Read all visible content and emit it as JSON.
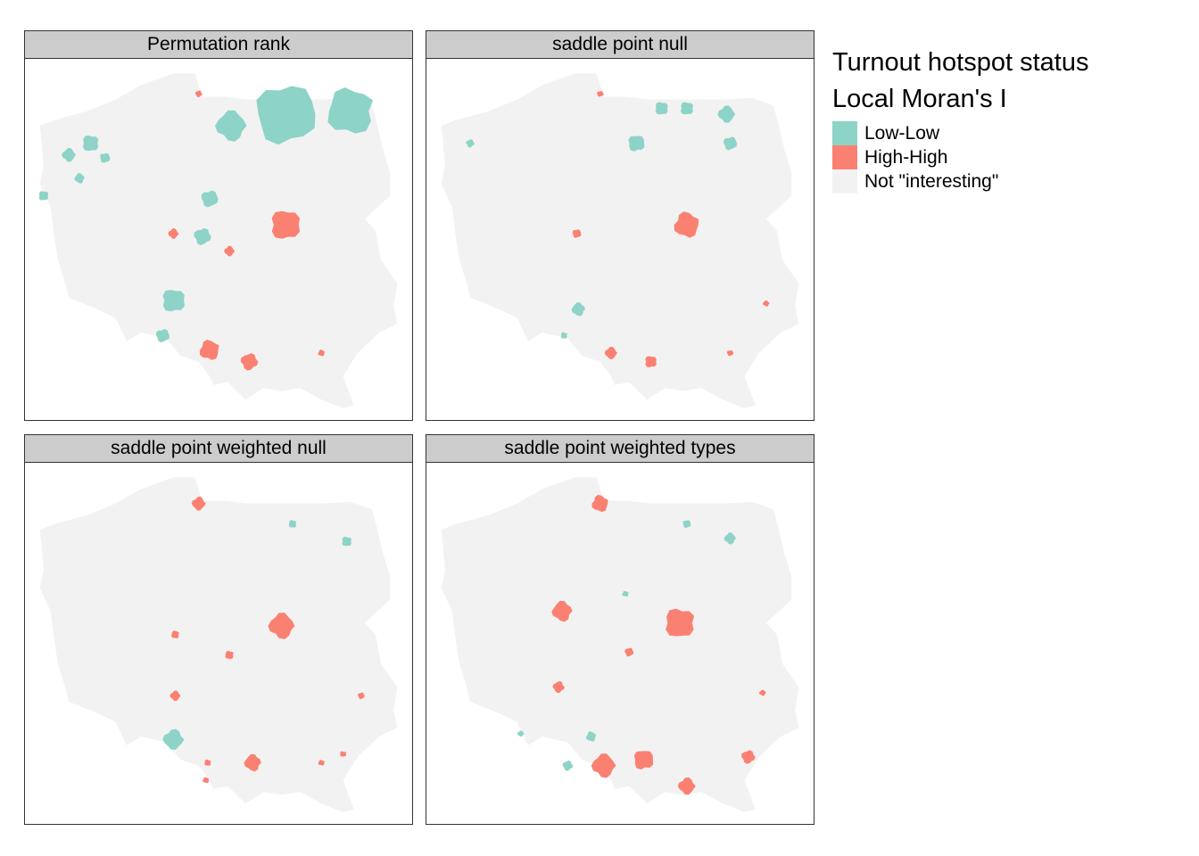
{
  "legend": {
    "title_line1": "Turnout hotspot status",
    "title_line2": "Local Moran's I",
    "items": [
      {
        "label": "Low-Low",
        "color": "#8ed3c7"
      },
      {
        "label": "High-High",
        "color": "#fa8172"
      },
      {
        "label": "Not \"interesting\"",
        "color": "#f2f2f2"
      }
    ]
  },
  "colors": {
    "land": "#f2f2f2",
    "low_low": "#8ed3c7",
    "high_high": "#fa8172"
  },
  "panels": [
    {
      "title": "Permutation rank",
      "clusters": [
        {
          "type": "LL",
          "lon": 21.0,
          "lat": 54.1,
          "r": 0.9
        },
        {
          "type": "LL",
          "lon": 22.8,
          "lat": 54.15,
          "r": 0.7
        },
        {
          "type": "LL",
          "lon": 19.5,
          "lat": 53.9,
          "r": 0.45
        },
        {
          "type": "LL",
          "lon": 15.6,
          "lat": 53.6,
          "r": 0.25
        },
        {
          "type": "LL",
          "lon": 15.0,
          "lat": 53.4,
          "r": 0.2
        },
        {
          "type": "LL",
          "lon": 16.0,
          "lat": 53.35,
          "r": 0.15
        },
        {
          "type": "LL",
          "lon": 14.3,
          "lat": 52.7,
          "r": 0.15
        },
        {
          "type": "LL",
          "lon": 15.3,
          "lat": 53.0,
          "r": 0.15
        },
        {
          "type": "LL",
          "lon": 18.9,
          "lat": 52.65,
          "r": 0.25
        },
        {
          "type": "LL",
          "lon": 18.7,
          "lat": 52.0,
          "r": 0.25
        },
        {
          "type": "LL",
          "lon": 17.9,
          "lat": 50.9,
          "r": 0.35
        },
        {
          "type": "LL",
          "lon": 17.6,
          "lat": 50.3,
          "r": 0.2
        },
        {
          "type": "HH",
          "lon": 21.0,
          "lat": 52.2,
          "r": 0.45
        },
        {
          "type": "HH",
          "lon": 17.9,
          "lat": 52.05,
          "r": 0.15
        },
        {
          "type": "HH",
          "lon": 19.45,
          "lat": 51.75,
          "r": 0.15
        },
        {
          "type": "HH",
          "lon": 18.6,
          "lat": 54.45,
          "r": 0.1
        },
        {
          "type": "HH",
          "lon": 18.9,
          "lat": 50.05,
          "r": 0.3
        },
        {
          "type": "HH",
          "lon": 20.0,
          "lat": 49.85,
          "r": 0.25
        },
        {
          "type": "HH",
          "lon": 22.0,
          "lat": 50.0,
          "r": 0.1
        }
      ]
    },
    {
      "title": "saddle point null",
      "clusters": [
        {
          "type": "LL",
          "lon": 20.3,
          "lat": 54.2,
          "r": 0.2
        },
        {
          "type": "LL",
          "lon": 21.0,
          "lat": 54.2,
          "r": 0.2
        },
        {
          "type": "LL",
          "lon": 22.1,
          "lat": 54.1,
          "r": 0.25
        },
        {
          "type": "LL",
          "lon": 22.2,
          "lat": 53.6,
          "r": 0.2
        },
        {
          "type": "LL",
          "lon": 19.6,
          "lat": 53.6,
          "r": 0.25
        },
        {
          "type": "LL",
          "lon": 15.0,
          "lat": 53.6,
          "r": 0.12
        },
        {
          "type": "LL",
          "lon": 18.0,
          "lat": 50.75,
          "r": 0.2
        },
        {
          "type": "LL",
          "lon": 17.6,
          "lat": 50.3,
          "r": 0.1
        },
        {
          "type": "HH",
          "lon": 21.0,
          "lat": 52.2,
          "r": 0.38
        },
        {
          "type": "HH",
          "lon": 17.95,
          "lat": 52.05,
          "r": 0.13
        },
        {
          "type": "HH",
          "lon": 18.6,
          "lat": 54.45,
          "r": 0.08
        },
        {
          "type": "HH",
          "lon": 23.2,
          "lat": 50.85,
          "r": 0.08
        },
        {
          "type": "HH",
          "lon": 18.9,
          "lat": 50.0,
          "r": 0.18
        },
        {
          "type": "HH",
          "lon": 20.0,
          "lat": 49.85,
          "r": 0.18
        },
        {
          "type": "HH",
          "lon": 22.2,
          "lat": 50.0,
          "r": 0.08
        }
      ]
    },
    {
      "title": "saddle point weighted null",
      "clusters": [
        {
          "type": "LL",
          "lon": 21.2,
          "lat": 54.0,
          "r": 0.12
        },
        {
          "type": "LL",
          "lon": 22.7,
          "lat": 53.7,
          "r": 0.15
        },
        {
          "type": "LL",
          "lon": 17.9,
          "lat": 50.3,
          "r": 0.3
        },
        {
          "type": "HH",
          "lon": 18.6,
          "lat": 54.35,
          "r": 0.2
        },
        {
          "type": "HH",
          "lon": 20.9,
          "lat": 52.25,
          "r": 0.38
        },
        {
          "type": "HH",
          "lon": 17.95,
          "lat": 52.1,
          "r": 0.12
        },
        {
          "type": "HH",
          "lon": 19.45,
          "lat": 51.75,
          "r": 0.13
        },
        {
          "type": "HH",
          "lon": 17.95,
          "lat": 51.05,
          "r": 0.15
        },
        {
          "type": "HH",
          "lon": 23.1,
          "lat": 51.05,
          "r": 0.1
        },
        {
          "type": "HH",
          "lon": 20.1,
          "lat": 49.9,
          "r": 0.25
        },
        {
          "type": "HH",
          "lon": 18.85,
          "lat": 49.9,
          "r": 0.1
        },
        {
          "type": "HH",
          "lon": 18.8,
          "lat": 49.6,
          "r": 0.08
        },
        {
          "type": "HH",
          "lon": 22.0,
          "lat": 49.9,
          "r": 0.08
        },
        {
          "type": "HH",
          "lon": 22.6,
          "lat": 50.05,
          "r": 0.08
        }
      ]
    },
    {
      "title": "saddle point weighted types",
      "clusters": [
        {
          "type": "LL",
          "lon": 21.0,
          "lat": 54.0,
          "r": 0.12
        },
        {
          "type": "LL",
          "lon": 22.2,
          "lat": 53.75,
          "r": 0.17
        },
        {
          "type": "LL",
          "lon": 19.3,
          "lat": 52.8,
          "r": 0.07
        },
        {
          "type": "LL",
          "lon": 18.35,
          "lat": 50.35,
          "r": 0.15
        },
        {
          "type": "LL",
          "lon": 17.7,
          "lat": 49.85,
          "r": 0.15
        },
        {
          "type": "LL",
          "lon": 18.55,
          "lat": 49.85,
          "r": 0.08
        },
        {
          "type": "LL",
          "lon": 16.4,
          "lat": 50.4,
          "r": 0.07
        },
        {
          "type": "HH",
          "lon": 18.6,
          "lat": 54.35,
          "r": 0.25
        },
        {
          "type": "HH",
          "lon": 20.8,
          "lat": 52.3,
          "r": 0.45
        },
        {
          "type": "HH",
          "lon": 17.55,
          "lat": 52.5,
          "r": 0.3
        },
        {
          "type": "HH",
          "lon": 19.4,
          "lat": 51.8,
          "r": 0.13
        },
        {
          "type": "HH",
          "lon": 17.45,
          "lat": 51.2,
          "r": 0.17
        },
        {
          "type": "HH",
          "lon": 23.1,
          "lat": 51.1,
          "r": 0.08
        },
        {
          "type": "HH",
          "lon": 18.7,
          "lat": 49.85,
          "r": 0.35
        },
        {
          "type": "HH",
          "lon": 19.8,
          "lat": 49.95,
          "r": 0.3
        },
        {
          "type": "HH",
          "lon": 21.0,
          "lat": 49.5,
          "r": 0.25
        },
        {
          "type": "HH",
          "lon": 22.7,
          "lat": 50.0,
          "r": 0.2
        }
      ]
    }
  ]
}
